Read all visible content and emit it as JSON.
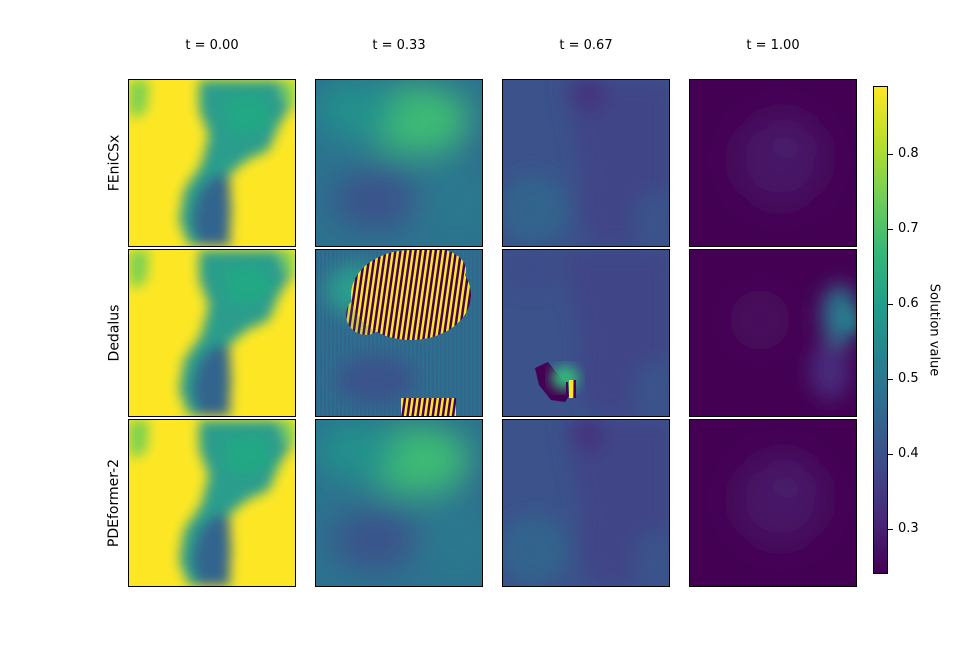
{
  "chart_data": {
    "type": "heatmap",
    "time_labels": [
      "t = 0.00",
      "t = 0.33",
      "t = 0.67",
      "t = 1.00"
    ],
    "methods": [
      "FEniCSx",
      "Dedalus",
      "PDEformer-2"
    ],
    "colorbar": {
      "label": "Solution value",
      "colormap": "viridis",
      "range": [
        0.24,
        0.89
      ],
      "ticks": [
        0.3,
        0.4,
        0.5,
        0.6,
        0.7,
        0.8
      ],
      "tick_labels": [
        "0.3",
        "0.4",
        "0.5",
        "0.6",
        "0.7",
        "0.8"
      ]
    },
    "panel_mean_values": [
      [
        0.83,
        0.55,
        0.38,
        0.26
      ],
      [
        0.83,
        0.5,
        0.36,
        0.27
      ],
      [
        0.83,
        0.55,
        0.38,
        0.27
      ]
    ]
  }
}
